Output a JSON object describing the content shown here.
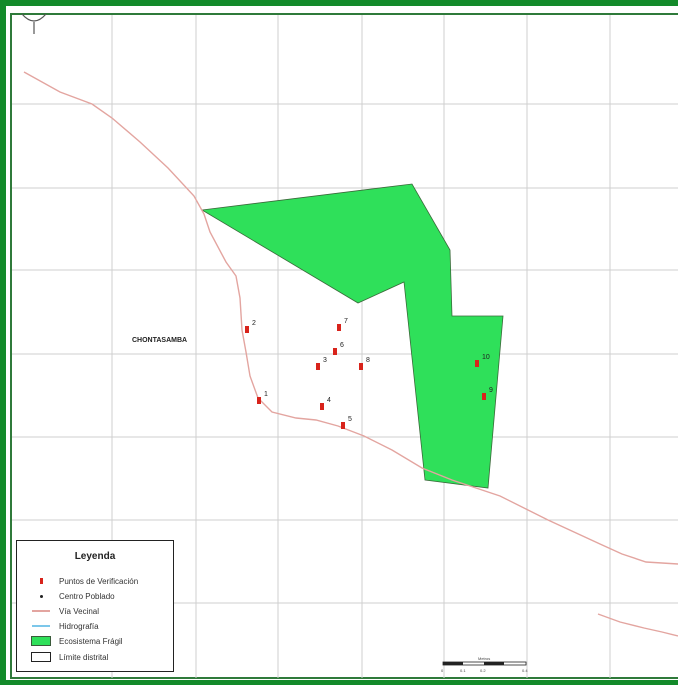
{
  "map": {
    "town_label": "CHONTASAMBA",
    "colors": {
      "frame": "#138a2a",
      "grid": "#cfcfcf",
      "road": "#e3a5a0",
      "fragile_ecosystem": "#2fe05a",
      "verification_point": "#d8231b"
    },
    "verification_points": [
      {
        "label": "1"
      },
      {
        "label": "2"
      },
      {
        "label": "3"
      },
      {
        "label": "4"
      },
      {
        "label": "5"
      },
      {
        "label": "6"
      },
      {
        "label": "7"
      },
      {
        "label": "8"
      },
      {
        "label": "9"
      },
      {
        "label": "10"
      }
    ],
    "scale_bar": {
      "title": "Metros",
      "ticks": [
        "0",
        "0.1",
        "0.2",
        "0.4"
      ]
    }
  },
  "legend": {
    "title": "Leyenda",
    "items": [
      {
        "label": "Puntos de Verificación",
        "symbol": "red-marker"
      },
      {
        "label": "Centro Poblado",
        "symbol": "black-dot"
      },
      {
        "label": "Vía Vecinal",
        "symbol": "red-line"
      },
      {
        "label": "Hidrografía",
        "symbol": "blue-line"
      },
      {
        "label": "Ecosistema Frágil",
        "symbol": "green-fill"
      },
      {
        "label": "Límite distrital",
        "symbol": "white-box"
      }
    ]
  }
}
